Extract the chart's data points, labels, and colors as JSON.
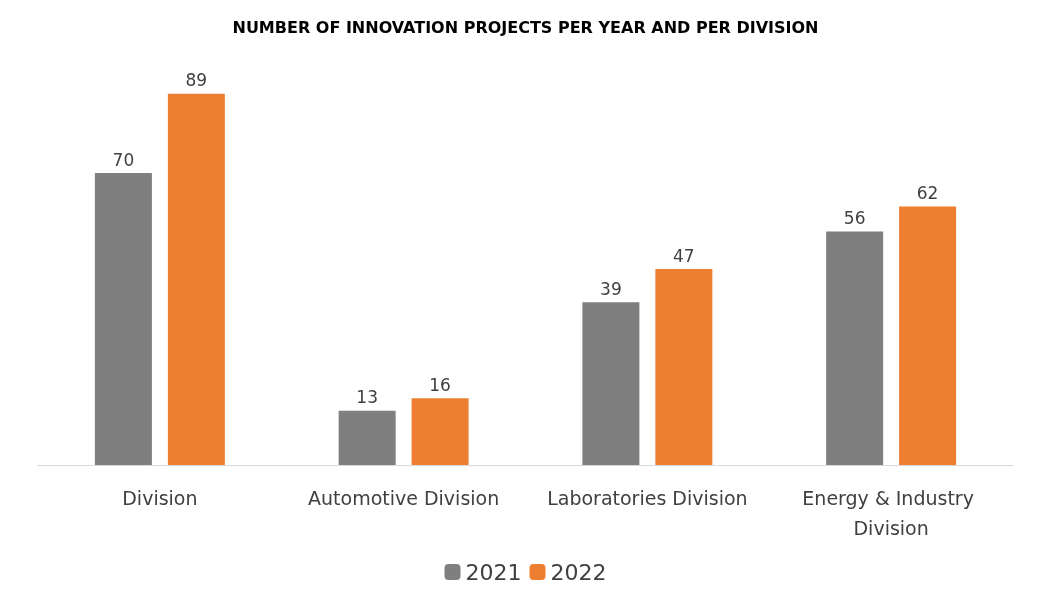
{
  "chart_data": {
    "type": "bar",
    "title": "NUMBER OF INNOVATION PROJECTS PER YEAR AND PER DIVISION",
    "categories": [
      "Division",
      "Automotive Division",
      "Laboratories Division",
      "Energy & Industry Division"
    ],
    "series": [
      {
        "name": "2021",
        "color": "#7f7f7f",
        "values": [
          70,
          13,
          39,
          56
        ]
      },
      {
        "name": "2022",
        "color": "#ed7d31",
        "values": [
          89,
          16,
          47,
          62
        ]
      }
    ],
    "data_labels": true,
    "legend": "bottom",
    "grid": false
  }
}
